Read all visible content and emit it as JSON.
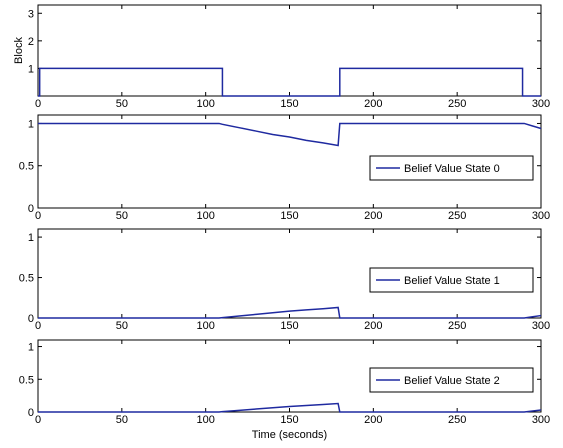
{
  "accent_color": "#1f2aa0",
  "chart_data": [
    {
      "type": "line",
      "xlabel": "",
      "ylabel": "Block",
      "xlim": [
        0,
        300
      ],
      "ylim": [
        0,
        3.3
      ],
      "xticks": [
        0,
        50,
        100,
        150,
        200,
        250,
        300
      ],
      "yticks": [
        1,
        2,
        3
      ],
      "legend": null,
      "series": [
        {
          "x": [
            0,
            1,
            1,
            110,
            110,
            180,
            180,
            289,
            289,
            300
          ],
          "y": [
            0,
            0,
            1,
            1,
            0,
            0,
            1,
            1,
            0,
            0
          ]
        }
      ]
    },
    {
      "type": "line",
      "xlabel": "",
      "ylabel": "",
      "xlim": [
        0,
        300
      ],
      "ylim": [
        0,
        1.1
      ],
      "xticks": [
        0,
        50,
        100,
        150,
        200,
        250,
        300
      ],
      "yticks": [
        0,
        0.5,
        1
      ],
      "legend": "right",
      "series": [
        {
          "name": "Belief Value State 0",
          "x": [
            0,
            108,
            110,
            120,
            130,
            140,
            150,
            160,
            170,
            179,
            180,
            290,
            295,
            300
          ],
          "y": [
            1,
            1,
            0.99,
            0.95,
            0.91,
            0.87,
            0.84,
            0.8,
            0.77,
            0.74,
            1,
            1,
            0.97,
            0.94
          ]
        }
      ]
    },
    {
      "type": "line",
      "xlabel": "",
      "ylabel": "",
      "xlim": [
        0,
        300
      ],
      "ylim": [
        0,
        1.1
      ],
      "xticks": [
        0,
        50,
        100,
        150,
        200,
        250,
        300
      ],
      "yticks": [
        0,
        0.5,
        1
      ],
      "legend": "right",
      "series": [
        {
          "name": "Belief Value State 1",
          "x": [
            0,
            108,
            110,
            120,
            130,
            140,
            150,
            160,
            170,
            179,
            180,
            290,
            295,
            300
          ],
          "y": [
            0,
            0,
            0.005,
            0.025,
            0.045,
            0.065,
            0.085,
            0.1,
            0.115,
            0.13,
            0,
            0,
            0.015,
            0.03
          ]
        }
      ]
    },
    {
      "type": "line",
      "xlabel": "Time (seconds)",
      "ylabel": "",
      "xlim": [
        0,
        300
      ],
      "ylim": [
        0,
        1.1
      ],
      "xticks": [
        0,
        50,
        100,
        150,
        200,
        250,
        300
      ],
      "yticks": [
        0,
        0.5,
        1
      ],
      "legend": "right",
      "series": [
        {
          "name": "Belief Value State 2",
          "x": [
            0,
            108,
            110,
            120,
            130,
            140,
            150,
            160,
            170,
            179,
            180,
            290,
            295,
            300
          ],
          "y": [
            0,
            0,
            0.005,
            0.025,
            0.045,
            0.065,
            0.085,
            0.1,
            0.115,
            0.13,
            0,
            0,
            0.015,
            0.03
          ]
        }
      ]
    }
  ]
}
